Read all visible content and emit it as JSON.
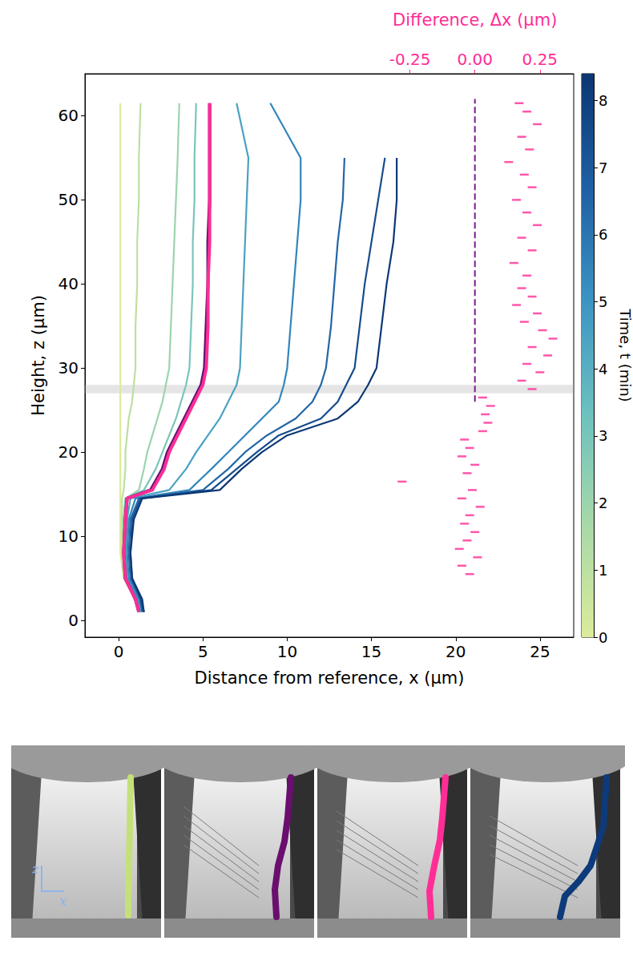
{
  "chart_data": {
    "type": "line",
    "x_label": "Distance from reference, x (μm)",
    "y_label": "Height, z (μm)",
    "x2_label": "Difference, Δx (μm)",
    "xlim": [
      -2,
      27
    ],
    "xticks": [
      0,
      5,
      10,
      15,
      20,
      25
    ],
    "ylim": [
      -2,
      65
    ],
    "yticks": [
      0,
      10,
      20,
      30,
      40,
      50,
      60
    ],
    "x2lim": [
      -1.5,
      0.38
    ],
    "x2ticks": [
      {
        "value": -0.25,
        "label": "-0.25"
      },
      {
        "value": 0,
        "label": "0.00"
      },
      {
        "value": 0.25,
        "label": "0.25"
      }
    ],
    "grid": false,
    "z": [
      1,
      2.5,
      5,
      8,
      12,
      14.5,
      15.5,
      18,
      20,
      22,
      24,
      26,
      28,
      30,
      35,
      40,
      45,
      50,
      55,
      61.5
    ],
    "series": [
      {
        "time": 0,
        "values": [
          1.2,
          1.0,
          0.3,
          0.1,
          0.1,
          0.1,
          0.1,
          0.1,
          0.1,
          0.1,
          0.1,
          0.1,
          0.1,
          0.1,
          0.1,
          0.1,
          0.1,
          0.1,
          0.1,
          0.1
        ]
      },
      {
        "time": 1,
        "values": [
          1.2,
          1.0,
          0.3,
          0.2,
          0.2,
          0.2,
          0.3,
          0.4,
          0.4,
          0.5,
          0.6,
          0.8,
          0.9,
          1.0,
          1.0,
          1.1,
          1.1,
          1.2,
          1.2,
          1.3
        ]
      },
      {
        "time": 2,
        "values": [
          1.3,
          1.1,
          0.4,
          0.3,
          0.3,
          0.4,
          1.2,
          1.5,
          1.7,
          2.0,
          2.3,
          2.6,
          2.8,
          3.0,
          3.1,
          3.2,
          3.3,
          3.4,
          3.5,
          3.6
        ]
      },
      {
        "time": 3,
        "values": [
          1.3,
          1.1,
          0.4,
          0.3,
          0.3,
          0.4,
          1.5,
          2.2,
          2.6,
          3.0,
          3.4,
          3.7,
          4.0,
          4.2,
          4.3,
          4.4,
          4.4,
          4.5,
          4.5,
          4.6
        ]
      },
      {
        "time": 4.5,
        "values": [
          1.3,
          1.1,
          0.5,
          0.4,
          0.5,
          0.7,
          3.0,
          4.0,
          4.6,
          5.3,
          6.0,
          6.5,
          7.0,
          7.2,
          7.3,
          7.4,
          7.5,
          7.6,
          7.7,
          7.0
        ]
      },
      {
        "time": 5.5,
        "values": [
          1.4,
          1.2,
          0.6,
          0.5,
          0.6,
          1.0,
          4.2,
          5.5,
          6.5,
          7.5,
          8.5,
          9.5,
          9.8,
          10.0,
          10.2,
          10.4,
          10.6,
          10.8,
          10.8,
          9.0
        ]
      },
      {
        "time": 6.5,
        "values": [
          1.4,
          1.3,
          0.7,
          0.6,
          0.7,
          1.2,
          5.0,
          6.5,
          7.5,
          8.8,
          10.5,
          11.5,
          12.0,
          12.3,
          12.6,
          12.8,
          13.0,
          13.3,
          13.4,
          null
        ]
      },
      {
        "time": 7.5,
        "values": [
          1.5,
          1.3,
          0.8,
          0.7,
          0.8,
          1.3,
          5.5,
          7.0,
          8.2,
          9.5,
          12.0,
          13.0,
          13.5,
          14.0,
          14.3,
          14.6,
          15.0,
          15.4,
          15.8,
          null
        ]
      },
      {
        "time": 8.3,
        "values": [
          1.5,
          1.4,
          0.8,
          0.7,
          0.9,
          1.4,
          6.0,
          7.3,
          8.5,
          10.0,
          13.0,
          14.2,
          14.8,
          15.3,
          15.6,
          15.9,
          16.3,
          16.5,
          16.5,
          null
        ]
      },
      {
        "color": "#5e1470",
        "values": [
          1.2,
          1.0,
          0.4,
          0.3,
          0.4,
          0.5,
          1.9,
          2.6,
          2.9,
          3.4,
          3.9,
          4.4,
          4.9,
          5.1,
          5.2,
          5.3,
          5.3,
          5.4,
          5.4,
          5.4
        ]
      },
      {
        "color": "#ff2d96",
        "values": [
          1.2,
          1.0,
          0.4,
          0.3,
          0.4,
          0.5,
          2.0,
          2.7,
          3.0,
          3.5,
          4.0,
          4.5,
          5.0,
          5.2,
          5.3,
          5.3,
          5.4,
          5.4,
          5.4,
          5.4
        ]
      }
    ],
    "difference": {
      "color": "#ff2d96",
      "z": [
        5.5,
        6.5,
        7.5,
        8.5,
        9.5,
        10.5,
        11.5,
        12.5,
        13.5,
        14.5,
        15.5,
        16.5,
        17.5,
        18.5,
        19.5,
        20.5,
        21.5,
        22.5,
        23.5,
        24.5,
        25.5,
        26.5,
        27.5,
        28.5,
        29.5,
        30.5,
        31.5,
        32.5,
        33.5,
        34.5,
        35.5,
        36.5,
        37.5,
        38.5,
        39.5,
        41,
        42.5,
        44,
        45.5,
        47,
        48.5,
        50,
        51.5,
        53,
        54.5,
        56,
        57.5,
        59,
        60.5,
        61.5
      ],
      "dx": [
        -0.02,
        -0.05,
        0.01,
        -0.06,
        -0.03,
        0.0,
        -0.04,
        -0.02,
        0.02,
        -0.05,
        -0.01,
        -0.28,
        -0.03,
        0.0,
        -0.05,
        -0.02,
        -0.04,
        0.03,
        0.05,
        0.04,
        0.06,
        0.03,
        0.22,
        0.18,
        0.25,
        0.2,
        0.28,
        0.22,
        0.3,
        0.26,
        0.19,
        0.24,
        0.16,
        0.22,
        0.18,
        0.2,
        0.15,
        0.22,
        0.18,
        0.24,
        0.2,
        0.16,
        0.22,
        0.19,
        0.13,
        0.21,
        0.18,
        0.24,
        0.2,
        0.17
      ]
    },
    "reference": {
      "color": "#7b1b8c",
      "line_style": "dashed",
      "z": [
        26,
        62
      ],
      "dx": [
        0,
        0
      ]
    },
    "band": [
      27,
      28
    ],
    "colorbar": {
      "label": "Time, t (min)",
      "range": [
        0,
        8.4
      ],
      "ticks": [
        0,
        1,
        2,
        3,
        4,
        5,
        6,
        7,
        8
      ],
      "colors": [
        "#dbeb9a",
        "#a7d9a8",
        "#6cc0bf",
        "#3b93c3",
        "#1f5fa3",
        "#0b3672"
      ]
    }
  },
  "photos": {
    "axis_labels": [
      "z",
      "x"
    ],
    "line_colors": [
      "#c5e07a",
      "#6a0f6e",
      "#ff2d96",
      "#0d3a7a"
    ]
  }
}
